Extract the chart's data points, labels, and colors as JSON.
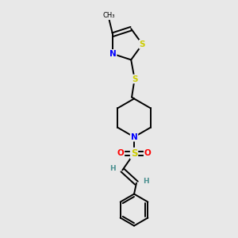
{
  "background_color": "#e8e8e8",
  "bond_color": "#000000",
  "atom_colors": {
    "N": "#0000ff",
    "S_ring": "#cccc00",
    "S_sulfone": "#cccc00",
    "S_thioether": "#cccc00",
    "O": "#ff0000",
    "H_vinyl": "#4a9090"
  },
  "figsize": [
    3.0,
    3.0
  ],
  "dpi": 100,
  "xlim": [
    0,
    10
  ],
  "ylim": [
    0,
    10
  ]
}
